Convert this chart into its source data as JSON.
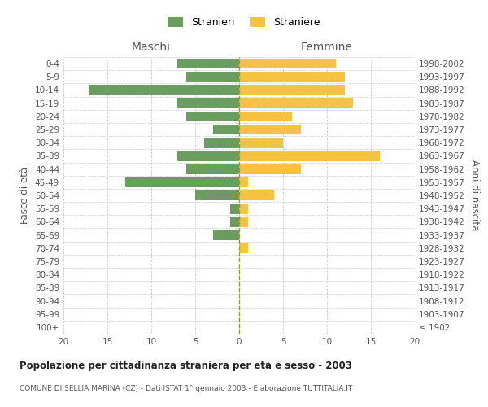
{
  "age_groups": [
    "100+",
    "95-99",
    "90-94",
    "85-89",
    "80-84",
    "75-79",
    "70-74",
    "65-69",
    "60-64",
    "55-59",
    "50-54",
    "45-49",
    "40-44",
    "35-39",
    "30-34",
    "25-29",
    "20-24",
    "15-19",
    "10-14",
    "5-9",
    "0-4"
  ],
  "birth_years": [
    "≤ 1902",
    "1903-1907",
    "1908-1912",
    "1913-1917",
    "1918-1922",
    "1923-1927",
    "1928-1932",
    "1933-1937",
    "1938-1942",
    "1943-1947",
    "1948-1952",
    "1953-1957",
    "1958-1962",
    "1963-1967",
    "1968-1972",
    "1973-1977",
    "1978-1982",
    "1983-1987",
    "1988-1992",
    "1993-1997",
    "1998-2002"
  ],
  "maschi": [
    0,
    0,
    0,
    0,
    0,
    0,
    0,
    3,
    1,
    1,
    5,
    13,
    6,
    7,
    4,
    3,
    6,
    7,
    17,
    6,
    7
  ],
  "femmine": [
    0,
    0,
    0,
    0,
    0,
    0,
    1,
    0,
    1,
    1,
    4,
    1,
    7,
    16,
    5,
    7,
    6,
    13,
    12,
    12,
    11
  ],
  "color_maschi": "#6a9e5e",
  "color_femmine": "#f5c242",
  "title": "Popolazione per cittadinanza straniera per età e sesso - 2003",
  "subtitle": "COMUNE DI SELLIA MARINA (CZ) - Dati ISTAT 1° gennaio 2003 - Elaborazione TUTTITALIA.IT",
  "label_maschi": "Stranieri",
  "label_femmine": "Straniere",
  "xlabel_left": "Maschi",
  "xlabel_right": "Femmine",
  "ylabel_left": "Fasce di età",
  "ylabel_right": "Anni di nascita",
  "xlim": 20,
  "background_color": "#ffffff",
  "grid_color": "#cccccc",
  "xticks": [
    20,
    15,
    10,
    5,
    0,
    5,
    10,
    15,
    20
  ]
}
